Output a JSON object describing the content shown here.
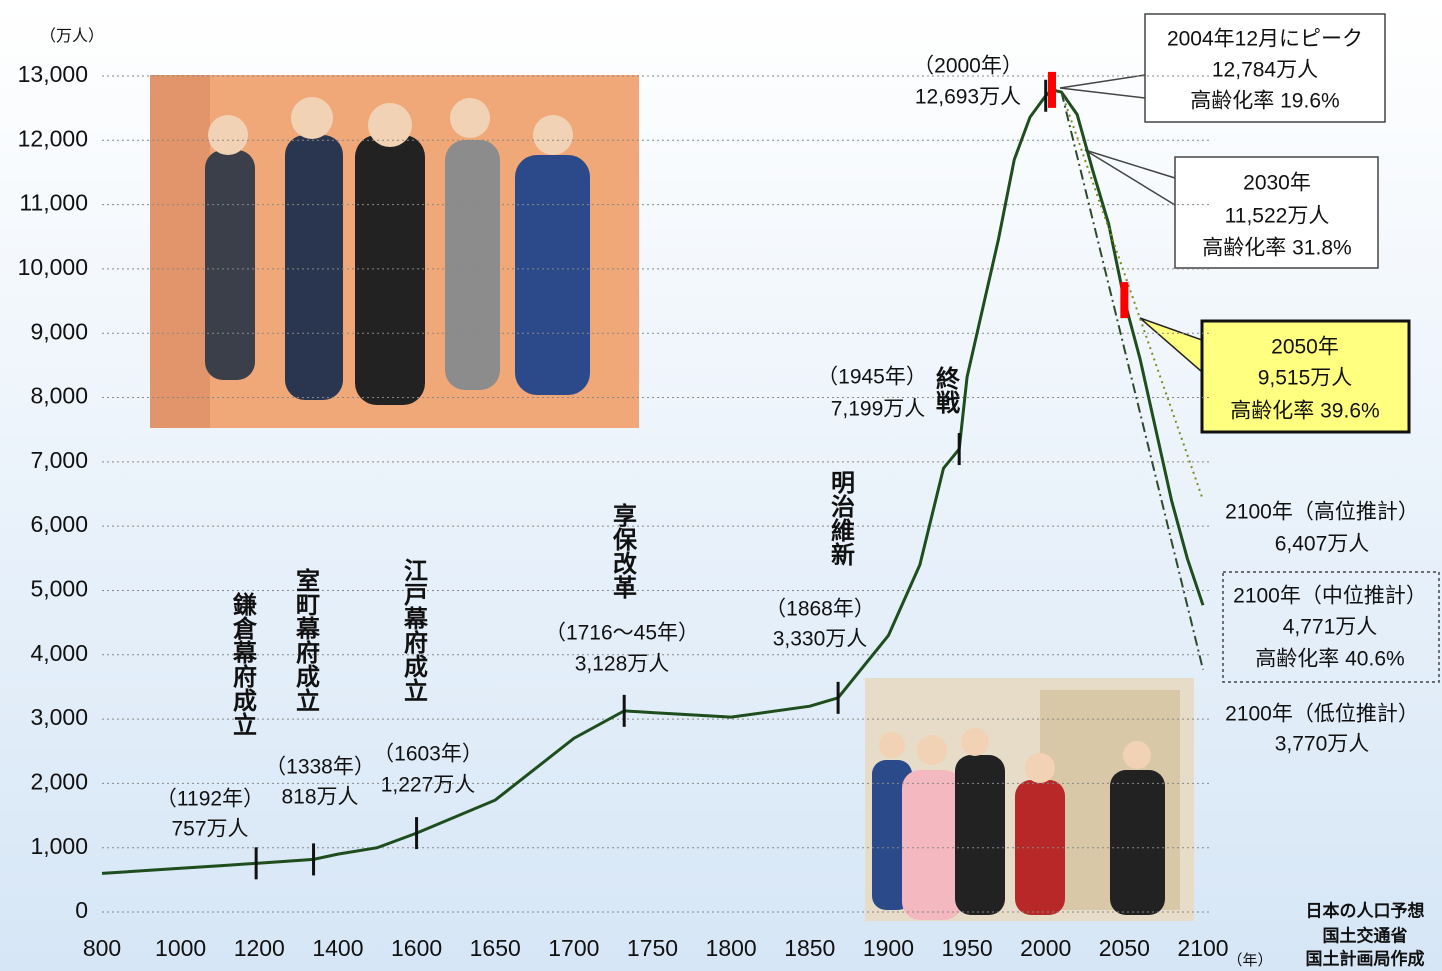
{
  "chart_data": {
    "type": "line",
    "y_label": "（万人）",
    "x_label": "（年）",
    "source": [
      "日本の人口予想",
      "国土交通省",
      "国土計画局作成"
    ],
    "ylim": [
      0,
      13000
    ],
    "yticks": [
      0,
      {
        "value": 1000,
        "label": "1,000"
      },
      {
        "value": 2000,
        "label": "2,000"
      },
      {
        "value": 3000,
        "label": "3,000"
      },
      {
        "value": 4000,
        "label": "4,000"
      },
      {
        "value": 5000,
        "label": "5,000"
      },
      {
        "value": 6000,
        "label": "6,000"
      },
      {
        "value": 7000,
        "label": "7,000"
      },
      {
        "value": 8000,
        "label": "8,000"
      },
      {
        "value": 9000,
        "label": "9,000"
      },
      {
        "value": 10000,
        "label": "10,000"
      },
      {
        "value": 11000,
        "label": "11,000"
      },
      {
        "value": 12000,
        "label": "12,000"
      },
      {
        "value": 13000,
        "label": "13,000"
      }
    ],
    "xlim": [
      800,
      2100
    ],
    "xticks": [
      800,
      1000,
      1200,
      1400,
      1600,
      1650,
      1700,
      1750,
      1800,
      1850,
      1900,
      1950,
      2000,
      2050,
      2100
    ],
    "grid": true,
    "series": [
      {
        "color": "#1e4d1e",
        "style": "solid",
        "x": [
          800,
          1000,
          1100,
          1192,
          1338,
          1400,
          1500,
          1600,
          1650,
          1700,
          1732,
          1750,
          1800,
          1850,
          1868,
          1900,
          1920,
          1935,
          1945,
          1950,
          1970,
          1980,
          1990,
          2000,
          2004,
          2010,
          2020,
          2030,
          2040,
          2050,
          2060,
          2070,
          2080,
          2090,
          2100
        ],
        "values": [
          600,
          680,
          720,
          757,
          818,
          900,
          1000,
          1227,
          1740,
          2700,
          3128,
          3100,
          3030,
          3200,
          3330,
          4300,
          5400,
          6900,
          7199,
          8320,
          10466,
          11700,
          12360,
          12693,
          12784,
          12750,
          12400,
          11522,
          10700,
          9515,
          8600,
          7500,
          6400,
          5500,
          4771
        ],
        "value_labels": [
          null,
          null,
          null,
          "757万人",
          "818万人",
          null,
          null,
          "1,227万人",
          null,
          null,
          "3,128万人",
          null,
          null,
          null,
          "3,330万人",
          null,
          null,
          null,
          "7,199万人",
          null,
          null,
          null,
          null,
          "12,693万人",
          "12,784万人",
          null,
          null,
          "11,522万人",
          null,
          "9,515万人",
          null,
          null,
          null,
          null,
          "4,771万人"
        ]
      },
      {
        "color": "#7a8a20",
        "style": "dotted",
        "x": [
          2010,
          2100
        ],
        "values": [
          12750,
          6407
        ],
        "value_labels": [
          null,
          "6,407万人"
        ]
      },
      {
        "color": "#2e4a2e",
        "style": "dashdot",
        "x": [
          2010,
          2100
        ],
        "values": [
          12750,
          3770
        ],
        "value_labels": [
          null,
          "3,770万人"
        ]
      }
    ],
    "annotations": [
      {
        "text": "鎌倉幕府成立",
        "vertical": true
      },
      {
        "text": "（1192年）"
      },
      {
        "text": "室町幕府成立",
        "vertical": true
      },
      {
        "text": "（1338年）"
      },
      {
        "text": "江戸幕府成立",
        "vertical": true
      },
      {
        "text": "（1603年）"
      },
      {
        "text": "享保改革",
        "vertical": true
      },
      {
        "text": "（1716〜45年）"
      },
      {
        "text": "明治維新",
        "vertical": true
      },
      {
        "text": "（1868年）"
      },
      {
        "text": "（1945年）"
      },
      {
        "text": "終戦",
        "vertical": true
      },
      {
        "text": "（2000年）"
      },
      {
        "text": "2004年12月にピーク"
      },
      {
        "text": "高齢化率 19.6%",
        "color": "#ff0000"
      },
      {
        "text": "2030年"
      },
      {
        "text": "高齢化率 31.8%",
        "color": "#ff0000"
      },
      {
        "text": "2050年"
      },
      {
        "text": "高齢化率 39.6%",
        "color": "#ff0000"
      },
      {
        "text": "2100年（高位推計）"
      },
      {
        "text": "2100年（中位推計）"
      },
      {
        "text": "高齢化率 40.6%",
        "color": "#ff0000"
      },
      {
        "text": "2100年（低位推計）"
      }
    ]
  }
}
